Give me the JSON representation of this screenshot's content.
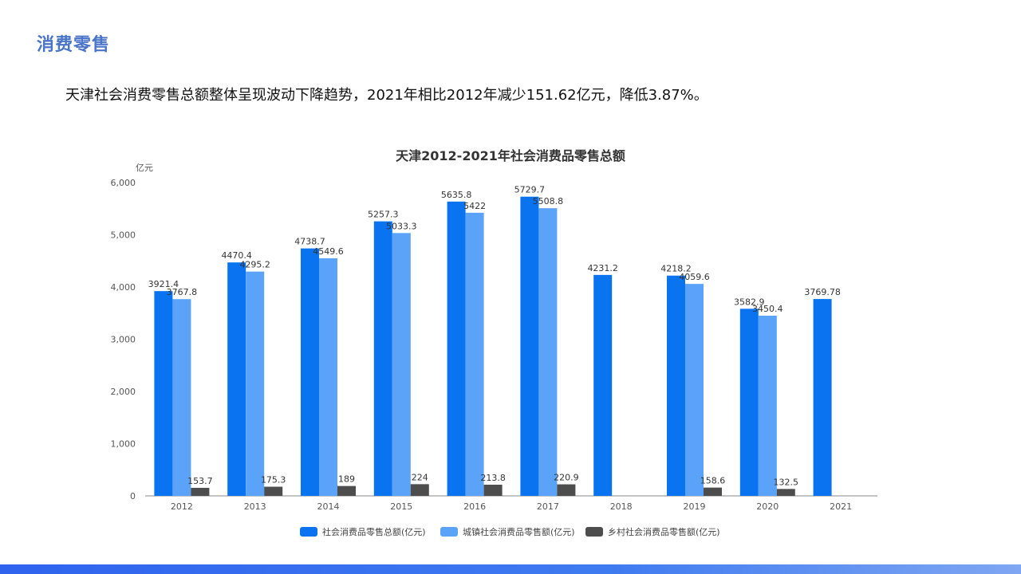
{
  "page": {
    "section_title": "消费零售",
    "summary": "天津社会消费零售总额整体呈现波动下降趋势，2021年相比2012年减少151.62亿元，降低3.87%。"
  },
  "chart_data": {
    "type": "bar",
    "title": "天津2012-2021年社会消费品零售总额",
    "unit": "亿元",
    "categories": [
      "2012",
      "2013",
      "2014",
      "2015",
      "2016",
      "2017",
      "2018",
      "2019",
      "2020",
      "2021"
    ],
    "ylim": [
      0,
      6000
    ],
    "yticks": [
      0,
      1000,
      2000,
      3000,
      4000,
      5000,
      6000
    ],
    "ytick_labels": [
      "0",
      "1,000",
      "2,000",
      "3,000",
      "4,000",
      "5,000",
      "6,000"
    ],
    "grid": false,
    "legend_position": "bottom",
    "series": [
      {
        "name": "社会消费品零售总额(亿元)",
        "color": "#0a73f0",
        "values": [
          3921.4,
          4470.4,
          4738.7,
          5257.3,
          5635.8,
          5729.7,
          4231.2,
          4218.2,
          3582.9,
          3769.78
        ],
        "labels": [
          "3921.4",
          "4470.4",
          "4738.7",
          "5257.3",
          "5635.8",
          "5729.7",
          "4231.2",
          "4218.2",
          "3582.9",
          "3769.78"
        ]
      },
      {
        "name": "城镇社会消费品零售额(亿元)",
        "color": "#5aa3f8",
        "values": [
          3767.8,
          4295.2,
          4549.6,
          5033.3,
          5422,
          5508.8,
          null,
          4059.6,
          3450.4,
          null
        ],
        "labels": [
          "3767.8",
          "4295.2",
          "4549.6",
          "5033.3",
          "5422",
          "5508.8",
          null,
          "4059.6",
          "3450.4",
          null
        ]
      },
      {
        "name": "乡村社会消费品零售额(亿元)",
        "color": "#4d4d4d",
        "values": [
          153.7,
          175.3,
          189,
          224,
          213.8,
          220.9,
          null,
          158.6,
          132.5,
          null
        ],
        "labels": [
          "153.7",
          "175.3",
          "189",
          "224",
          "213.8",
          "220.9",
          null,
          "158.6",
          "132.5",
          null
        ]
      }
    ]
  }
}
